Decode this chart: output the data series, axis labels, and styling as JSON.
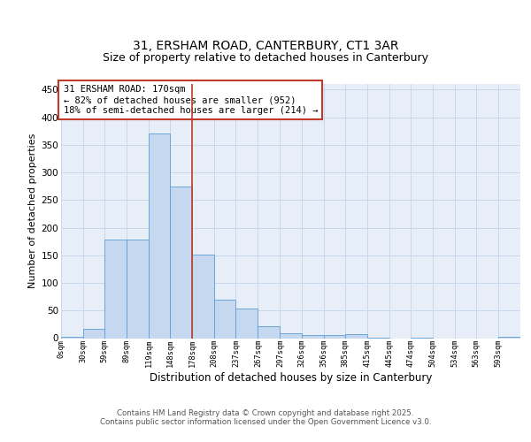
{
  "title_line1": "31, ERSHAM ROAD, CANTERBURY, CT1 3AR",
  "title_line2": "Size of property relative to detached houses in Canterbury",
  "xlabel": "Distribution of detached houses by size in Canterbury",
  "ylabel": "Number of detached properties",
  "bin_labels": [
    "0sqm",
    "30sqm",
    "59sqm",
    "89sqm",
    "119sqm",
    "148sqm",
    "178sqm",
    "208sqm",
    "237sqm",
    "267sqm",
    "297sqm",
    "326sqm",
    "356sqm",
    "385sqm",
    "415sqm",
    "445sqm",
    "474sqm",
    "504sqm",
    "534sqm",
    "563sqm",
    "593sqm"
  ],
  "bin_edges": [
    0,
    30,
    59,
    89,
    119,
    148,
    178,
    208,
    237,
    267,
    297,
    326,
    356,
    385,
    415,
    445,
    474,
    504,
    534,
    563,
    593,
    623
  ],
  "counts": [
    2,
    17,
    178,
    178,
    370,
    275,
    152,
    70,
    53,
    22,
    9,
    6,
    5,
    7,
    1,
    0,
    1,
    0,
    0,
    0,
    3
  ],
  "bar_color": "#c5d8f0",
  "bar_edge_color": "#5a9fd4",
  "bar_linewidth": 0.6,
  "vline_x": 178,
  "vline_color": "#c0392b",
  "vline_linewidth": 1.2,
  "annotation_text": "31 ERSHAM ROAD: 170sqm\n← 82% of detached houses are smaller (952)\n18% of semi-detached houses are larger (214) →",
  "annotation_box_color": "white",
  "annotation_box_edge": "#c0392b",
  "annotation_fontsize": 7.5,
  "yticks": [
    0,
    50,
    100,
    150,
    200,
    250,
    300,
    350,
    400,
    450
  ],
  "ylim": [
    0,
    460
  ],
  "grid_color": "#c8d8ec",
  "bg_color": "#e8eef8",
  "footer_text": "Contains HM Land Registry data © Crown copyright and database right 2025.\nContains public sector information licensed under the Open Government Licence v3.0.",
  "title_fontsize": 10,
  "subtitle_fontsize": 9,
  "xlabel_fontsize": 8.5,
  "ylabel_fontsize": 8
}
